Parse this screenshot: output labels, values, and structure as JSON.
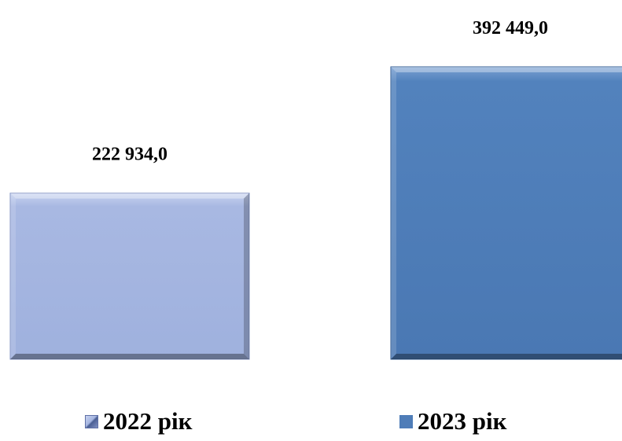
{
  "chart_data": {
    "type": "bar",
    "categories": [
      "2022 рік",
      "2023 рік"
    ],
    "values": [
      222934.0,
      392449.0
    ],
    "value_labels": [
      "222 934,0",
      "392 449,0"
    ],
    "series_colors": [
      "#a5b5e0",
      "#4f7db8"
    ],
    "edge_colors": [
      "#7f90c2",
      "#2f5a90"
    ],
    "axes_visible": false,
    "grid": false,
    "legend_position": "bottom"
  }
}
